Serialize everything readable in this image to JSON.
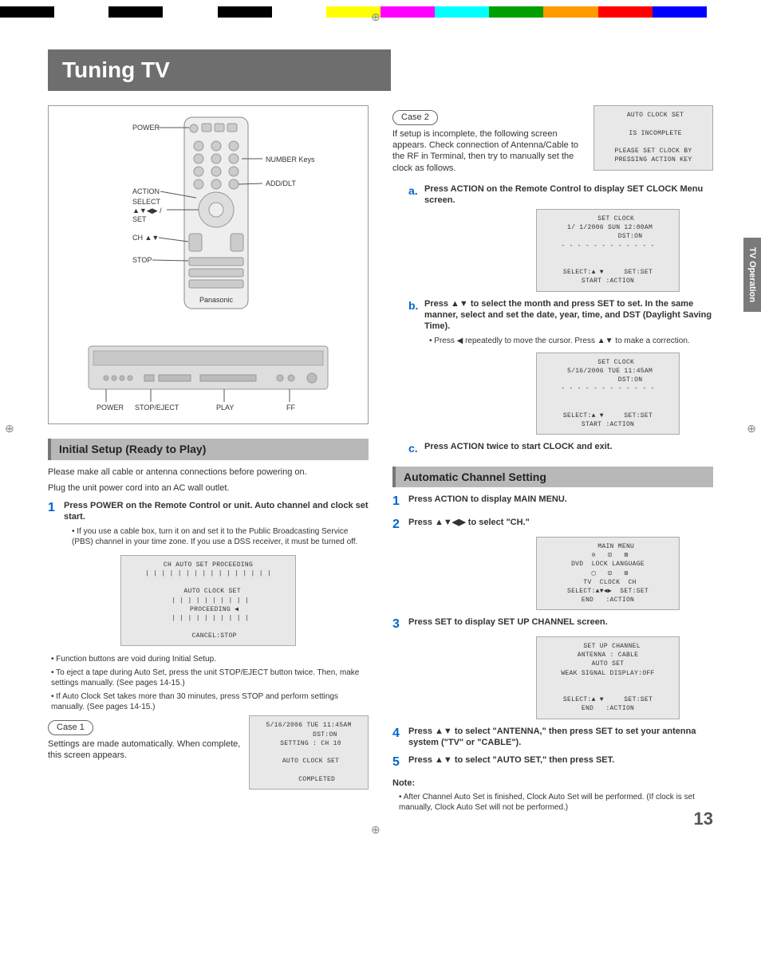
{
  "page": {
    "title": "Tuning TV",
    "page_number": "13",
    "side_tab": "TV Operation"
  },
  "color_bar": [
    "#000000",
    "#ffffff",
    "#000000",
    "#ffffff",
    "#000000",
    "#ffffff",
    "#ffff00",
    "#ff00ff",
    "#00ffff",
    "#00a000",
    "#ff9900",
    "#ff0000",
    "#0000ff",
    "#ffffff"
  ],
  "remote": {
    "labels_left": [
      "POWER",
      "ACTION",
      "SELECT",
      "▲▼◀▶ /",
      "SET",
      "CH ▲▼",
      "STOP"
    ],
    "labels_right": [
      "NUMBER Keys",
      "ADD/DLT"
    ],
    "unit_labels": [
      "POWER",
      "STOP/EJECT",
      "PLAY",
      "FF"
    ],
    "brand": "Panasonic"
  },
  "left": {
    "section1_title": "Initial Setup (Ready to Play)",
    "intro1": "Please make all cable or antenna connections before powering on.",
    "intro2": "Plug the unit power cord into an AC wall outlet.",
    "step1_bold": "Press POWER on the Remote Control or unit. Auto channel and clock set start.",
    "step1_sub": "If you use a cable box, turn it on and set it to the Public Broadcasting Service (PBS) channel in your time zone. If you use a DSS receiver, it must be turned off.",
    "osd1": " CH AUTO SET PROCEEDING \n| | | | | | | | | | | | | | | |\n\n  AUTO CLOCK SET\n | | | | | | | | | |\n   PROCEEDING ◀\n | | | | | | | | | |\n\n   CANCEL:STOP",
    "bullets": [
      "Function buttons are void during Initial Setup.",
      "To eject a tape during Auto Set, press the unit STOP/EJECT button twice. Then, make settings manually. (See pages 14-15.)",
      "If Auto Clock Set takes more than 30 minutes, press STOP and perform settings manually. (See pages 14-15.)"
    ],
    "case1_label": "Case 1",
    "case1_text": "Settings are made automatically. When complete, this screen appears.",
    "osd_case1": "5/16/2006 TUE 11:45AM\n        DST:ON\n SETTING : CH 10\n\n AUTO CLOCK SET\n\n    COMPLETED"
  },
  "right": {
    "case2_label": "Case 2",
    "case2_text": "If setup is incomplete, the following screen appears. Check connection of Antenna/Cable to the RF in Terminal, then try to manually set the clock as follows.",
    "osd_case2": " AUTO CLOCK SET\n\n IS INCOMPLETE\n\nPLEASE SET CLOCK BY\nPRESSING ACTION KEY",
    "step_a_label": "a.",
    "step_a": "Press ACTION on the Remote Control to display SET CLOCK Menu screen.",
    "osd_a": "    SET CLOCK\n 1/ 1/2006 SUN 12:00AM\n           DST:ON\n- - - - - - - - - - - -\n\n\nSELECT:▲ ▼     SET:SET\nSTART :ACTION",
    "step_b_label": "b.",
    "step_b": "Press ▲▼ to select the month and press SET to set. In the same manner, select and set the date, year, time, and DST (Daylight Saving Time).",
    "step_b_sub": "Press ◀ repeatedly to move the cursor. Press ▲▼ to make a correction.",
    "osd_b": "    SET CLOCK\n 5/16/2006 TUE 11:45AM\n           DST:ON\n- - - - - - - - - - - -\n\n\nSELECT:▲ ▼     SET:SET\nSTART :ACTION",
    "step_c_label": "c.",
    "step_c": "Press ACTION twice to start CLOCK and exit.",
    "section2_title": "Automatic Channel Setting",
    "s2_step1": "Press ACTION to display MAIN MENU.",
    "s2_step2": "Press ▲▼◀▶ to select \"CH.\"",
    "osd_mainmenu": "    MAIN MENU\n ⊙   ⊡   ⊞\nDVD  LOCK LANGUAGE\n ▢   ⊡   ⊞\n TV  CLOCK  CH\nSELECT:▲▼◀▶  SET:SET\nEND   :ACTION",
    "s2_step3": "Press SET to display SET UP CHANNEL screen.",
    "osd_setup": "  SET UP CHANNEL\nANTENNA : CABLE\nAUTO SET\nWEAK SIGNAL DISPLAY:OFF\n\n\nSELECT:▲ ▼     SET:SET\nEND   :ACTION",
    "s2_step4": "Press ▲▼ to select \"ANTENNA,\" then press SET to set your antenna system (\"TV\" or \"CABLE\").",
    "s2_step5": "Press ▲▼ to select \"AUTO SET,\" then press SET.",
    "note_label": "Note:",
    "note_text": "After Channel Auto Set is finished, Clock Auto Set will be performed. (If clock is set manually, Clock Auto Set will not be performed.)"
  }
}
